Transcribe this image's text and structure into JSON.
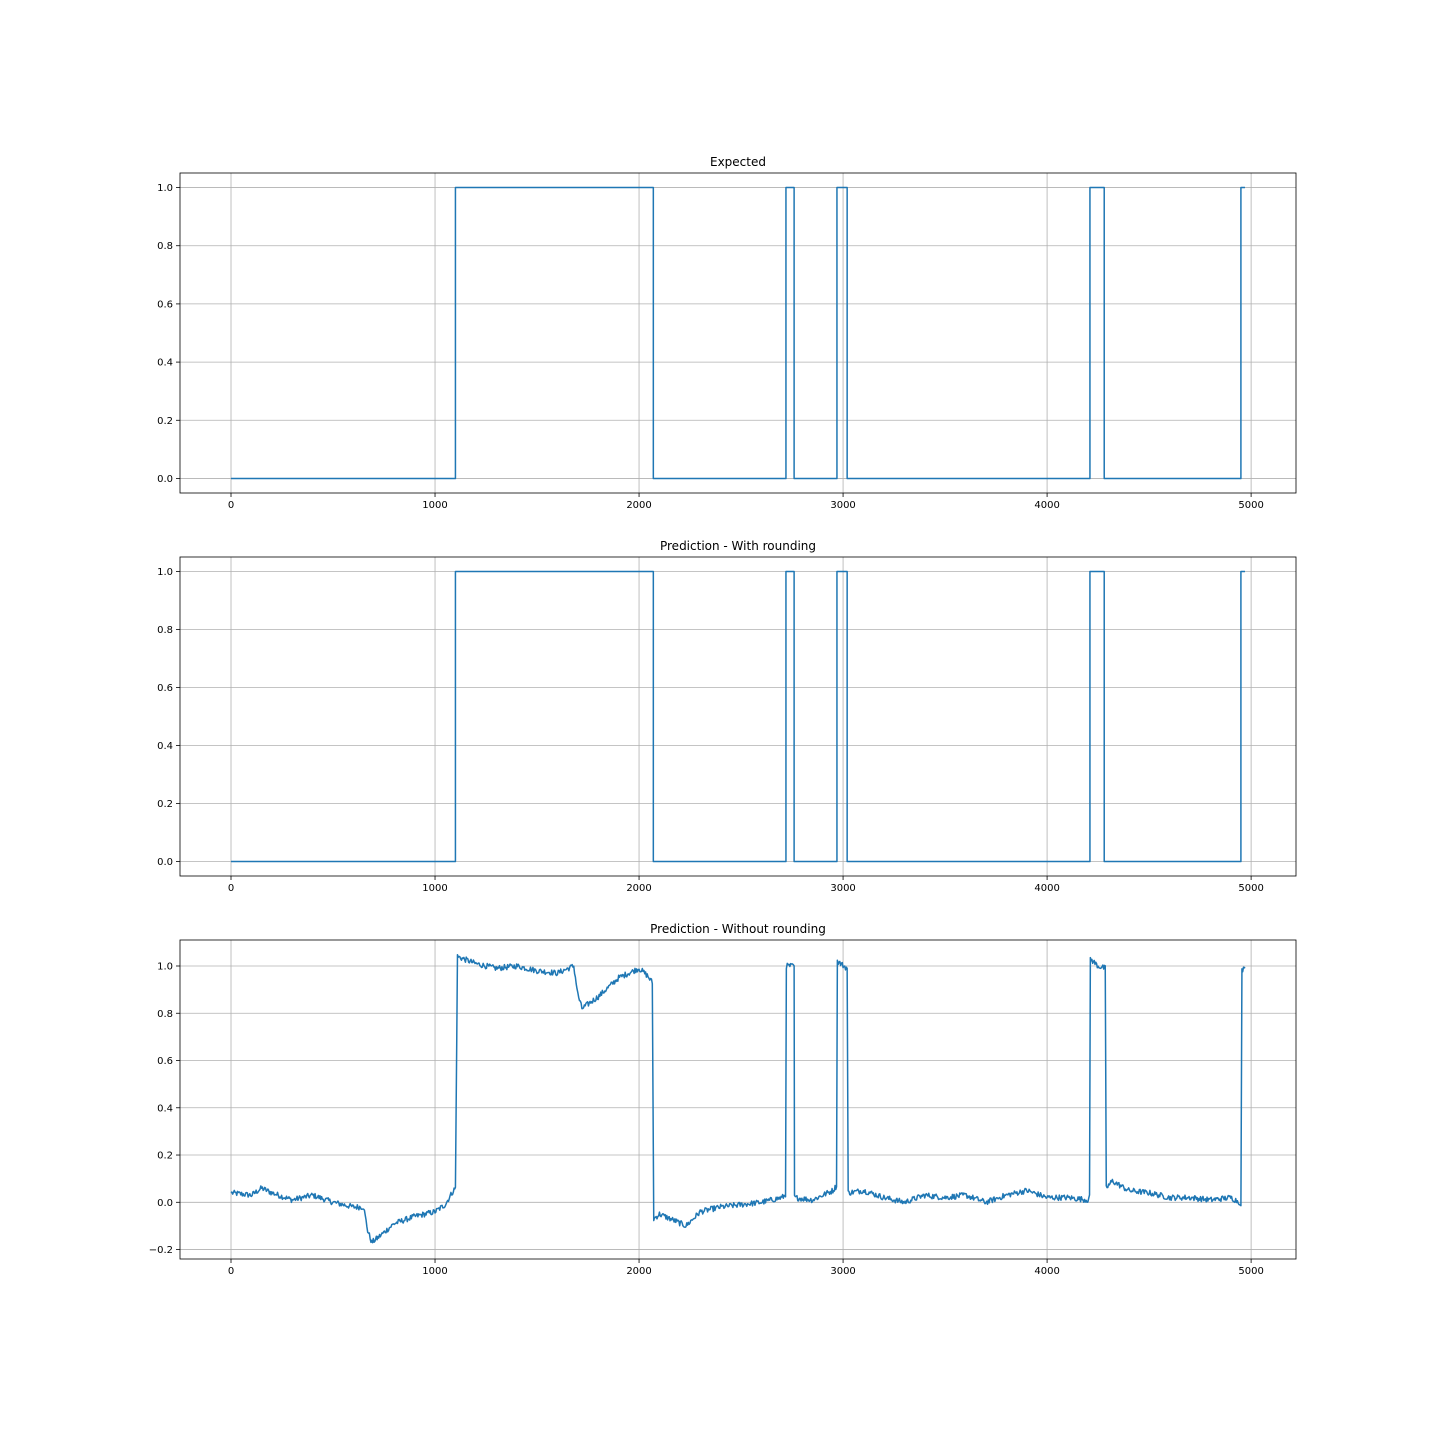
{
  "chart_data": [
    {
      "type": "line",
      "title": "Expected",
      "xlabel": "",
      "ylabel": "",
      "xlim": [
        -250,
        5220
      ],
      "ylim": [
        -0.05,
        1.05
      ],
      "xticks": [
        0,
        1000,
        2000,
        3000,
        4000,
        5000
      ],
      "xtick_labels": [
        "0",
        "1000",
        "2000",
        "3000",
        "4000",
        "5000"
      ],
      "yticks": [
        0.0,
        0.2,
        0.4,
        0.6,
        0.8,
        1.0
      ],
      "ytick_labels": [
        "0.0",
        "0.2",
        "0.4",
        "0.6",
        "0.8",
        "1.0"
      ],
      "grid": true,
      "series": [
        {
          "name": "expected",
          "color": "#1f77b4",
          "step": true,
          "points": [
            [
              0,
              0
            ],
            [
              1100,
              0
            ],
            [
              1100,
              1
            ],
            [
              2070,
              1
            ],
            [
              2070,
              0
            ],
            [
              2720,
              0
            ],
            [
              2720,
              1
            ],
            [
              2760,
              1
            ],
            [
              2760,
              0
            ],
            [
              2970,
              0
            ],
            [
              2970,
              1
            ],
            [
              3020,
              1
            ],
            [
              3020,
              0
            ],
            [
              4210,
              0
            ],
            [
              4210,
              1
            ],
            [
              4280,
              1
            ],
            [
              4280,
              0
            ],
            [
              4950,
              0
            ],
            [
              4950,
              1
            ],
            [
              4970,
              1
            ]
          ]
        }
      ]
    },
    {
      "type": "line",
      "title": "Prediction - With rounding",
      "xlabel": "",
      "ylabel": "",
      "xlim": [
        -250,
        5220
      ],
      "ylim": [
        -0.05,
        1.05
      ],
      "xticks": [
        0,
        1000,
        2000,
        3000,
        4000,
        5000
      ],
      "xtick_labels": [
        "0",
        "1000",
        "2000",
        "3000",
        "4000",
        "5000"
      ],
      "yticks": [
        0.0,
        0.2,
        0.4,
        0.6,
        0.8,
        1.0
      ],
      "ytick_labels": [
        "0.0",
        "0.2",
        "0.4",
        "0.6",
        "0.8",
        "1.0"
      ],
      "grid": true,
      "series": [
        {
          "name": "prediction_rounded",
          "color": "#1f77b4",
          "step": true,
          "points": [
            [
              0,
              0
            ],
            [
              1100,
              0
            ],
            [
              1100,
              1
            ],
            [
              2070,
              1
            ],
            [
              2070,
              0
            ],
            [
              2720,
              0
            ],
            [
              2720,
              1
            ],
            [
              2760,
              1
            ],
            [
              2760,
              0
            ],
            [
              2970,
              0
            ],
            [
              2970,
              1
            ],
            [
              3020,
              1
            ],
            [
              3020,
              0
            ],
            [
              4210,
              0
            ],
            [
              4210,
              1
            ],
            [
              4280,
              1
            ],
            [
              4280,
              0
            ],
            [
              4950,
              0
            ],
            [
              4950,
              1
            ],
            [
              4970,
              1
            ]
          ]
        }
      ]
    },
    {
      "type": "line",
      "title": "Prediction - Without rounding",
      "xlabel": "",
      "ylabel": "",
      "xlim": [
        -250,
        5220
      ],
      "ylim": [
        -0.24,
        1.11
      ],
      "xticks": [
        0,
        1000,
        2000,
        3000,
        4000,
        5000
      ],
      "xtick_labels": [
        "0",
        "1000",
        "2000",
        "3000",
        "4000",
        "5000"
      ],
      "yticks": [
        -0.2,
        0.0,
        0.2,
        0.4,
        0.6,
        0.8,
        1.0
      ],
      "ytick_labels": [
        "−0.2",
        "0.0",
        "0.2",
        "0.4",
        "0.6",
        "0.8",
        "1.0"
      ],
      "grid": true,
      "series": [
        {
          "name": "prediction_raw",
          "color": "#1f77b4",
          "noise": 0.012,
          "points": [
            [
              0,
              0.04
            ],
            [
              100,
              0.03
            ],
            [
              150,
              0.06
            ],
            [
              200,
              0.04
            ],
            [
              300,
              0.01
            ],
            [
              400,
              0.03
            ],
            [
              500,
              0.0
            ],
            [
              600,
              -0.02
            ],
            [
              650,
              -0.02
            ],
            [
              670,
              -0.12
            ],
            [
              690,
              -0.17
            ],
            [
              720,
              -0.15
            ],
            [
              800,
              -0.09
            ],
            [
              900,
              -0.06
            ],
            [
              1000,
              -0.04
            ],
            [
              1050,
              -0.01
            ],
            [
              1090,
              0.05
            ],
            [
              1100,
              0.06
            ],
            [
              1110,
              1.04
            ],
            [
              1200,
              1.01
            ],
            [
              1300,
              0.99
            ],
            [
              1400,
              1.0
            ],
            [
              1500,
              0.98
            ],
            [
              1600,
              0.97
            ],
            [
              1680,
              1.0
            ],
            [
              1700,
              0.88
            ],
            [
              1720,
              0.82
            ],
            [
              1800,
              0.87
            ],
            [
              1900,
              0.95
            ],
            [
              2000,
              0.99
            ],
            [
              2040,
              0.96
            ],
            [
              2065,
              0.93
            ],
            [
              2072,
              -0.07
            ],
            [
              2100,
              -0.05
            ],
            [
              2180,
              -0.08
            ],
            [
              2230,
              -0.1
            ],
            [
              2300,
              -0.04
            ],
            [
              2400,
              -0.02
            ],
            [
              2500,
              -0.01
            ],
            [
              2600,
              0.0
            ],
            [
              2700,
              0.02
            ],
            [
              2718,
              0.03
            ],
            [
              2722,
              1.0
            ],
            [
              2735,
              1.0
            ],
            [
              2760,
              1.0
            ],
            [
              2762,
              0.02
            ],
            [
              2850,
              0.01
            ],
            [
              2950,
              0.05
            ],
            [
              2968,
              0.07
            ],
            [
              2972,
              1.02
            ],
            [
              3020,
              0.99
            ],
            [
              3025,
              0.04
            ],
            [
              3100,
              0.05
            ],
            [
              3200,
              0.02
            ],
            [
              3300,
              0.0
            ],
            [
              3400,
              0.03
            ],
            [
              3500,
              0.02
            ],
            [
              3600,
              0.03
            ],
            [
              3700,
              0.0
            ],
            [
              3800,
              0.03
            ],
            [
              3900,
              0.05
            ],
            [
              4000,
              0.02
            ],
            [
              4100,
              0.02
            ],
            [
              4200,
              0.01
            ],
            [
              4208,
              0.02
            ],
            [
              4212,
              1.03
            ],
            [
              4250,
              1.0
            ],
            [
              4285,
              0.99
            ],
            [
              4290,
              0.06
            ],
            [
              4320,
              0.09
            ],
            [
              4400,
              0.05
            ],
            [
              4500,
              0.04
            ],
            [
              4600,
              0.02
            ],
            [
              4700,
              0.02
            ],
            [
              4800,
              0.01
            ],
            [
              4900,
              0.02
            ],
            [
              4945,
              0.0
            ],
            [
              4950,
              -0.02
            ],
            [
              4955,
              0.98
            ],
            [
              4970,
              0.99
            ]
          ]
        }
      ]
    }
  ]
}
